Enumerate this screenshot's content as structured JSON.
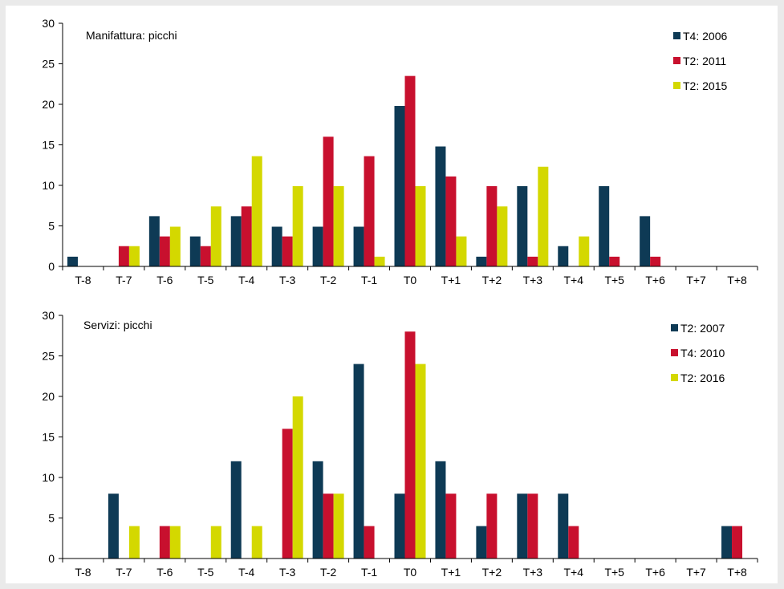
{
  "chart_data": [
    {
      "type": "bar",
      "title": "Manifattura: picchi",
      "categories": [
        "T-8",
        "T-7",
        "T-6",
        "T-5",
        "T-4",
        "T-3",
        "T-2",
        "T-1",
        "T0",
        "T+1",
        "T+2",
        "T+3",
        "T+4",
        "T+5",
        "T+6",
        "T+7",
        "T+8"
      ],
      "series": [
        {
          "name": "T4: 2006",
          "color": "#0e3a55",
          "values": [
            1.2,
            0,
            6.2,
            3.7,
            6.2,
            4.9,
            4.9,
            4.9,
            19.8,
            14.8,
            1.2,
            9.9,
            2.5,
            9.9,
            6.2,
            0,
            0
          ]
        },
        {
          "name": "T2: 2011",
          "color": "#c8102e",
          "values": [
            0,
            2.5,
            3.7,
            2.5,
            7.4,
            3.7,
            16.0,
            13.6,
            23.5,
            11.1,
            9.9,
            1.2,
            0,
            1.2,
            1.2,
            0,
            0
          ]
        },
        {
          "name": "T2: 2015",
          "color": "#d4d800",
          "values": [
            0,
            2.5,
            4.9,
            7.4,
            13.6,
            9.9,
            9.9,
            1.2,
            9.9,
            3.7,
            7.4,
            12.3,
            3.7,
            0,
            0,
            0,
            0
          ]
        }
      ],
      "ylim": [
        0,
        30
      ],
      "yticks": [
        0,
        5,
        10,
        15,
        20,
        25,
        30
      ],
      "legend": "top-right"
    },
    {
      "type": "bar",
      "title": "Servizi: picchi",
      "categories": [
        "T-8",
        "T-7",
        "T-6",
        "T-5",
        "T-4",
        "T-3",
        "T-2",
        "T-1",
        "T0",
        "T+1",
        "T+2",
        "T+3",
        "T+4",
        "T+5",
        "T+6",
        "T+7",
        "T+8"
      ],
      "series": [
        {
          "name": "T2: 2007",
          "color": "#0e3a55",
          "values": [
            0,
            8,
            0,
            0,
            12,
            0,
            12,
            24,
            8,
            12,
            4,
            8,
            8,
            0,
            0,
            0,
            4
          ]
        },
        {
          "name": "T4: 2010",
          "color": "#c8102e",
          "values": [
            0,
            0,
            4,
            0,
            0,
            16,
            8,
            4,
            28,
            8,
            8,
            8,
            4,
            0,
            0,
            0,
            4
          ]
        },
        {
          "name": "T2: 2016",
          "color": "#d4d800",
          "values": [
            0,
            4,
            4,
            4,
            4,
            20,
            8,
            0,
            24,
            0,
            0,
            0,
            0,
            0,
            0,
            0,
            0
          ]
        }
      ],
      "ylim": [
        0,
        30
      ],
      "yticks": [
        0,
        5,
        10,
        15,
        20,
        25,
        30
      ],
      "legend": "top-right"
    }
  ]
}
